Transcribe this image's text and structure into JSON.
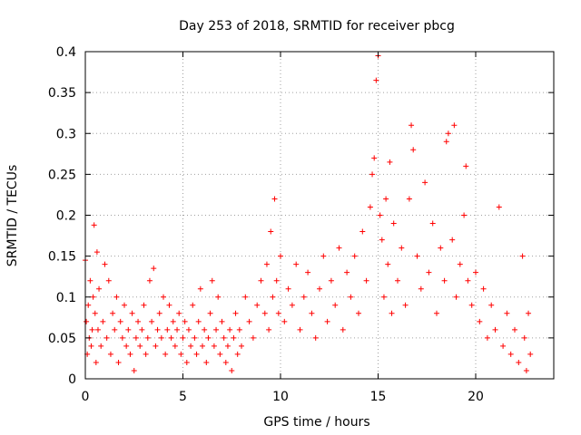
{
  "chart_data": {
    "type": "scatter",
    "title": "Day 253 of 2018, SRMTID for receiver pbcg",
    "xlabel": "GPS time / hours",
    "ylabel": "SRMTID / TECUs",
    "xlim": [
      0,
      24
    ],
    "ylim": [
      0,
      0.4
    ],
    "xticks": [
      "0",
      "5",
      "10",
      "15",
      "20"
    ],
    "xtick_values": [
      0,
      5,
      10,
      15,
      20
    ],
    "yticks": [
      "0",
      "0.05",
      "0.1",
      "0.15",
      "0.2",
      "0.25",
      "0.3",
      "0.35",
      "0.4"
    ],
    "ytick_values": [
      0,
      0.05,
      0.1,
      0.15,
      0.2,
      0.25,
      0.3,
      0.35,
      0.4
    ],
    "grid": true,
    "marker": "+",
    "color": "#ff0000",
    "series": [
      {
        "name": "pbcg",
        "points": [
          [
            0.0,
            0.145
          ],
          [
            0.05,
            0.07
          ],
          [
            0.1,
            0.03
          ],
          [
            0.15,
            0.09
          ],
          [
            0.2,
            0.05
          ],
          [
            0.25,
            0.12
          ],
          [
            0.3,
            0.04
          ],
          [
            0.35,
            0.06
          ],
          [
            0.4,
            0.1
          ],
          [
            0.45,
            0.188
          ],
          [
            0.5,
            0.08
          ],
          [
            0.55,
            0.02
          ],
          [
            0.6,
            0.155
          ],
          [
            0.65,
            0.06
          ],
          [
            0.7,
            0.11
          ],
          [
            0.8,
            0.04
          ],
          [
            0.9,
            0.07
          ],
          [
            1.0,
            0.14
          ],
          [
            1.1,
            0.05
          ],
          [
            1.2,
            0.12
          ],
          [
            1.3,
            0.03
          ],
          [
            1.4,
            0.08
          ],
          [
            1.5,
            0.06
          ],
          [
            1.6,
            0.1
          ],
          [
            1.7,
            0.02
          ],
          [
            1.8,
            0.07
          ],
          [
            1.9,
            0.05
          ],
          [
            2.0,
            0.09
          ],
          [
            2.1,
            0.04
          ],
          [
            2.2,
            0.06
          ],
          [
            2.3,
            0.03
          ],
          [
            2.4,
            0.08
          ],
          [
            2.5,
            0.01
          ],
          [
            2.6,
            0.05
          ],
          [
            2.7,
            0.07
          ],
          [
            2.8,
            0.04
          ],
          [
            2.9,
            0.06
          ],
          [
            3.0,
            0.09
          ],
          [
            3.1,
            0.03
          ],
          [
            3.2,
            0.05
          ],
          [
            3.3,
            0.12
          ],
          [
            3.4,
            0.07
          ],
          [
            3.5,
            0.135
          ],
          [
            3.6,
            0.04
          ],
          [
            3.7,
            0.06
          ],
          [
            3.8,
            0.08
          ],
          [
            3.9,
            0.05
          ],
          [
            4.0,
            0.1
          ],
          [
            4.1,
            0.03
          ],
          [
            4.2,
            0.06
          ],
          [
            4.3,
            0.09
          ],
          [
            4.4,
            0.05
          ],
          [
            4.5,
            0.07
          ],
          [
            4.6,
            0.04
          ],
          [
            4.7,
            0.06
          ],
          [
            4.8,
            0.08
          ],
          [
            4.9,
            0.03
          ],
          [
            5.0,
            0.05
          ],
          [
            5.1,
            0.07
          ],
          [
            5.2,
            0.02
          ],
          [
            5.3,
            0.06
          ],
          [
            5.4,
            0.04
          ],
          [
            5.5,
            0.09
          ],
          [
            5.6,
            0.05
          ],
          [
            5.7,
            0.03
          ],
          [
            5.8,
            0.07
          ],
          [
            5.9,
            0.11
          ],
          [
            6.0,
            0.04
          ],
          [
            6.1,
            0.06
          ],
          [
            6.2,
            0.02
          ],
          [
            6.3,
            0.05
          ],
          [
            6.4,
            0.08
          ],
          [
            6.5,
            0.12
          ],
          [
            6.6,
            0.04
          ],
          [
            6.7,
            0.06
          ],
          [
            6.8,
            0.1
          ],
          [
            6.9,
            0.03
          ],
          [
            7.0,
            0.07
          ],
          [
            7.1,
            0.05
          ],
          [
            7.2,
            0.02
          ],
          [
            7.3,
            0.04
          ],
          [
            7.4,
            0.06
          ],
          [
            7.5,
            0.01
          ],
          [
            7.6,
            0.05
          ],
          [
            7.7,
            0.08
          ],
          [
            7.8,
            0.03
          ],
          [
            7.9,
            0.06
          ],
          [
            8.0,
            0.04
          ],
          [
            8.2,
            0.1
          ],
          [
            8.4,
            0.07
          ],
          [
            8.6,
            0.05
          ],
          [
            8.8,
            0.09
          ],
          [
            9.0,
            0.12
          ],
          [
            9.2,
            0.08
          ],
          [
            9.3,
            0.14
          ],
          [
            9.4,
            0.06
          ],
          [
            9.5,
            0.18
          ],
          [
            9.6,
            0.1
          ],
          [
            9.7,
            0.22
          ],
          [
            9.8,
            0.12
          ],
          [
            9.9,
            0.08
          ],
          [
            10.0,
            0.15
          ],
          [
            10.2,
            0.07
          ],
          [
            10.4,
            0.11
          ],
          [
            10.6,
            0.09
          ],
          [
            10.8,
            0.14
          ],
          [
            11.0,
            0.06
          ],
          [
            11.2,
            0.1
          ],
          [
            11.4,
            0.13
          ],
          [
            11.6,
            0.08
          ],
          [
            11.8,
            0.05
          ],
          [
            12.0,
            0.11
          ],
          [
            12.2,
            0.15
          ],
          [
            12.4,
            0.07
          ],
          [
            12.6,
            0.12
          ],
          [
            12.8,
            0.09
          ],
          [
            13.0,
            0.16
          ],
          [
            13.2,
            0.06
          ],
          [
            13.4,
            0.13
          ],
          [
            13.6,
            0.1
          ],
          [
            13.8,
            0.15
          ],
          [
            14.0,
            0.08
          ],
          [
            14.2,
            0.18
          ],
          [
            14.4,
            0.12
          ],
          [
            14.6,
            0.21
          ],
          [
            14.7,
            0.25
          ],
          [
            14.8,
            0.27
          ],
          [
            14.9,
            0.365
          ],
          [
            15.0,
            0.395
          ],
          [
            15.1,
            0.2
          ],
          [
            15.2,
            0.17
          ],
          [
            15.3,
            0.1
          ],
          [
            15.4,
            0.22
          ],
          [
            15.5,
            0.14
          ],
          [
            15.6,
            0.265
          ],
          [
            15.7,
            0.08
          ],
          [
            15.8,
            0.19
          ],
          [
            16.0,
            0.12
          ],
          [
            16.2,
            0.16
          ],
          [
            16.4,
            0.09
          ],
          [
            16.6,
            0.22
          ],
          [
            16.7,
            0.31
          ],
          [
            16.8,
            0.28
          ],
          [
            17.0,
            0.15
          ],
          [
            17.2,
            0.11
          ],
          [
            17.4,
            0.24
          ],
          [
            17.6,
            0.13
          ],
          [
            17.8,
            0.19
          ],
          [
            18.0,
            0.08
          ],
          [
            18.2,
            0.16
          ],
          [
            18.4,
            0.12
          ],
          [
            18.5,
            0.29
          ],
          [
            18.6,
            0.3
          ],
          [
            18.8,
            0.17
          ],
          [
            18.9,
            0.31
          ],
          [
            19.0,
            0.1
          ],
          [
            19.2,
            0.14
          ],
          [
            19.4,
            0.2
          ],
          [
            19.5,
            0.26
          ],
          [
            19.6,
            0.12
          ],
          [
            19.8,
            0.09
          ],
          [
            20.0,
            0.13
          ],
          [
            20.2,
            0.07
          ],
          [
            20.4,
            0.11
          ],
          [
            20.6,
            0.05
          ],
          [
            20.8,
            0.09
          ],
          [
            21.0,
            0.06
          ],
          [
            21.2,
            0.21
          ],
          [
            21.4,
            0.04
          ],
          [
            21.6,
            0.08
          ],
          [
            21.8,
            0.03
          ],
          [
            22.0,
            0.06
          ],
          [
            22.2,
            0.02
          ],
          [
            22.4,
            0.15
          ],
          [
            22.5,
            0.05
          ],
          [
            22.6,
            0.01
          ],
          [
            22.7,
            0.08
          ],
          [
            22.8,
            0.03
          ]
        ]
      }
    ]
  }
}
